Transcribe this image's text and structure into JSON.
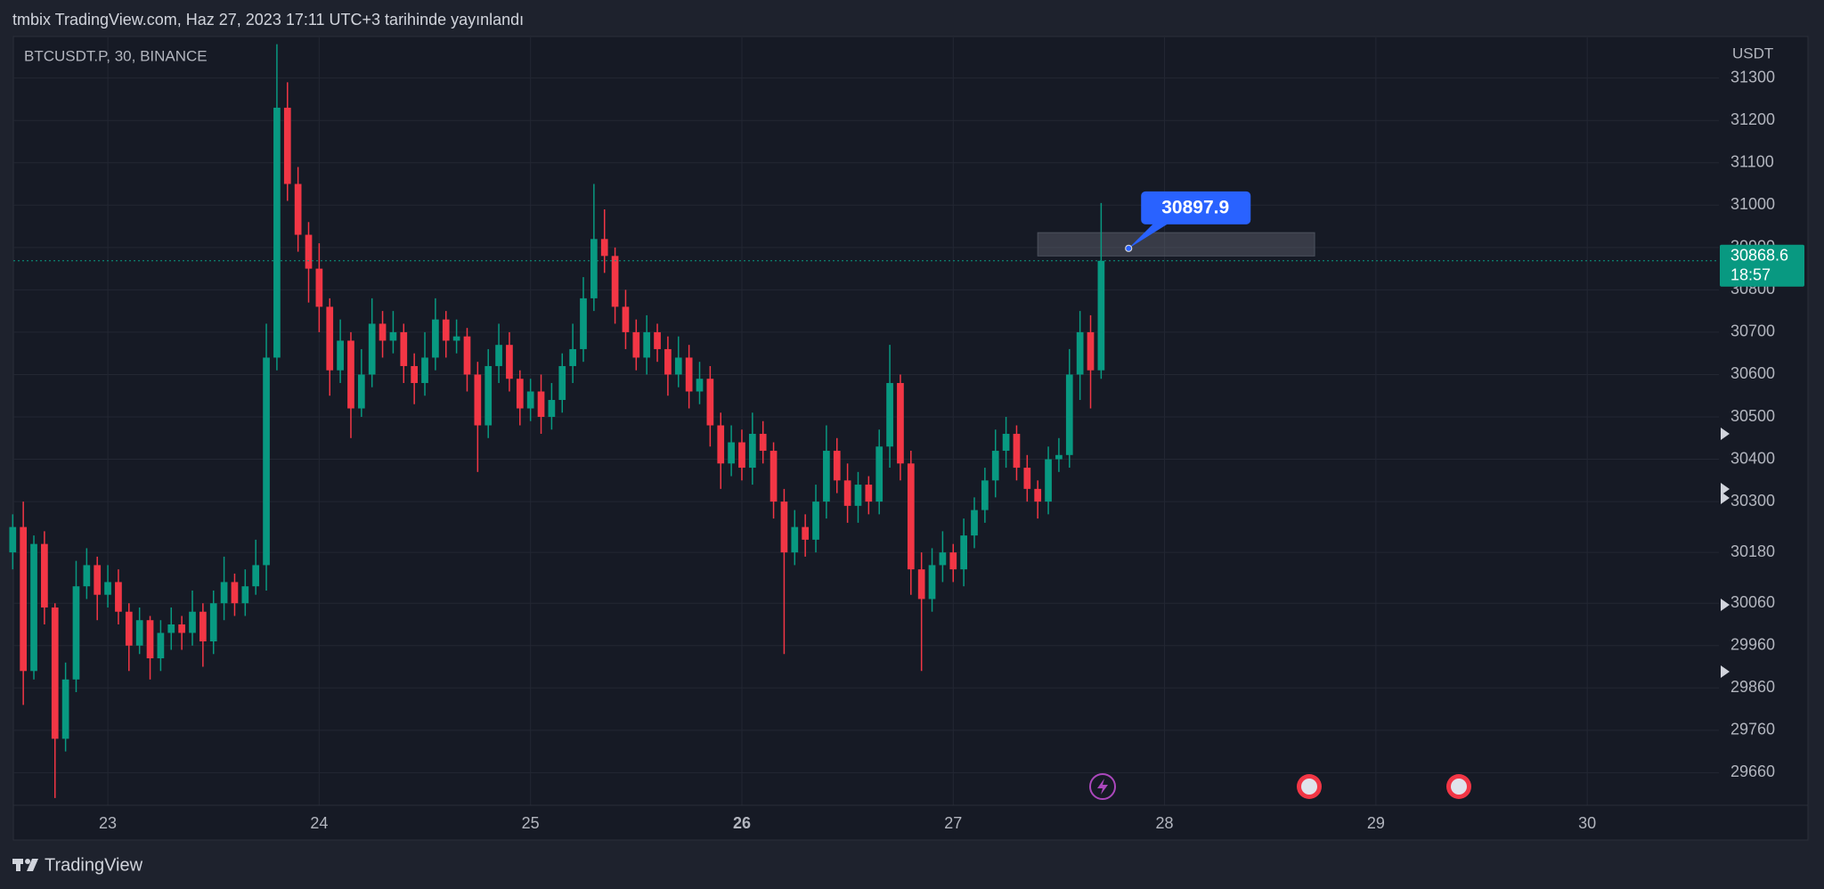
{
  "header": {
    "publisher": "tmbix TradingView.com, Haz 27, 2023 17:11 UTC+3 tarihinde yayınlandı"
  },
  "footer": {
    "brand": "TradingView"
  },
  "chart_data": {
    "type": "candlestick",
    "title": "BTCUSDT.P, 30, BINANCE",
    "y_unit": "USDT",
    "up_color": "#089981",
    "down_color": "#f23645",
    "grid": true,
    "xlim": [
      22.553,
      30.623
    ],
    "xticks": [
      23,
      24,
      25,
      26,
      27,
      28,
      29,
      30
    ],
    "ylim": [
      29583,
      31396
    ],
    "yticks": [
      31300,
      31200,
      31100,
      31000,
      30900,
      30800,
      30700,
      30600,
      30500,
      30400,
      30300,
      30180,
      30060,
      29960,
      29860,
      29760,
      29660
    ],
    "x": [
      22.55,
      22.6,
      22.65,
      22.7,
      22.75,
      22.8,
      22.85,
      22.9,
      22.95,
      23,
      23.05,
      23.1,
      23.15,
      23.2,
      23.25,
      23.3,
      23.35,
      23.4,
      23.45,
      23.5,
      23.55,
      23.6,
      23.65,
      23.7,
      23.75,
      23.8,
      23.85,
      23.9,
      23.95,
      24,
      24.05,
      24.1,
      24.15,
      24.2,
      24.25,
      24.3,
      24.35,
      24.4,
      24.45,
      24.5,
      24.55,
      24.6,
      24.65,
      24.7,
      24.75,
      24.8,
      24.85,
      24.9,
      24.95,
      25,
      25.05,
      25.1,
      25.15,
      25.2,
      25.25,
      25.3,
      25.35,
      25.4,
      25.45,
      25.5,
      25.55,
      25.6,
      25.65,
      25.7,
      25.75,
      25.8,
      25.85,
      25.9,
      25.95,
      26,
      26.05,
      26.1,
      26.15,
      26.2,
      26.25,
      26.3,
      26.35,
      26.4,
      26.45,
      26.5,
      26.55,
      26.6,
      26.65,
      26.7,
      26.75,
      26.8,
      26.85,
      26.9,
      26.95,
      27,
      27.05,
      27.1,
      27.15,
      27.2,
      27.25,
      27.3,
      27.35,
      27.4,
      27.45,
      27.5,
      27.55,
      27.6,
      27.65,
      27.7
    ],
    "open": [
      30180,
      30240,
      29900,
      30200,
      30050,
      29740,
      29880,
      30100,
      30150,
      30080,
      30110,
      30040,
      29960,
      30020,
      29930,
      29990,
      30010,
      29990,
      30040,
      29970,
      30060,
      30110,
      30060,
      30100,
      30150,
      30640,
      31230,
      31050,
      30930,
      30850,
      30760,
      30610,
      30680,
      30520,
      30600,
      30720,
      30680,
      30700,
      30620,
      30580,
      30640,
      30730,
      30680,
      30690,
      30600,
      30480,
      30620,
      30670,
      30590,
      30520,
      30560,
      30500,
      30540,
      30620,
      30660,
      30780,
      30920,
      30880,
      30760,
      30700,
      30640,
      30700,
      30660,
      30600,
      30640,
      30560,
      30590,
      30480,
      30390,
      30440,
      30380,
      30460,
      30420,
      30300,
      30180,
      30240,
      30210,
      30300,
      30420,
      30350,
      30290,
      30340,
      30300,
      30430,
      30580,
      30390,
      30140,
      30070,
      30150,
      30180,
      30140,
      30220,
      30280,
      30350,
      30420,
      30460,
      30380,
      30330,
      30300,
      30400,
      30410,
      30600,
      30700,
      30610
    ],
    "high": [
      30270,
      30300,
      30220,
      30230,
      30060,
      29920,
      30160,
      30190,
      30170,
      30150,
      30140,
      30060,
      30050,
      30030,
      30020,
      30050,
      30030,
      30090,
      30060,
      30090,
      30170,
      30130,
      30140,
      30210,
      30720,
      31380,
      31290,
      31090,
      30960,
      30910,
      30780,
      30730,
      30700,
      30660,
      30780,
      30750,
      30750,
      30720,
      30650,
      30700,
      30780,
      30750,
      30730,
      30710,
      30630,
      30660,
      30720,
      30700,
      30610,
      30590,
      30600,
      30580,
      30650,
      30720,
      30830,
      31050,
      30990,
      30900,
      30800,
      30730,
      30740,
      30720,
      30690,
      30690,
      30670,
      30630,
      30620,
      30510,
      30480,
      30470,
      30510,
      30490,
      30440,
      30330,
      30280,
      30270,
      30340,
      30480,
      30450,
      30390,
      30370,
      30360,
      30470,
      30670,
      30600,
      30420,
      30180,
      30190,
      30230,
      30200,
      30260,
      30310,
      30380,
      30470,
      30500,
      30480,
      30410,
      30350,
      30430,
      30450,
      30660,
      30750,
      30740,
      31005
    ],
    "low": [
      30140,
      29820,
      29880,
      30010,
      29600,
      29710,
      29850,
      30070,
      30020,
      30050,
      30010,
      29900,
      29940,
      29880,
      29900,
      29950,
      29950,
      29960,
      29910,
      29940,
      30020,
      30030,
      30030,
      30080,
      30090,
      30610,
      31010,
      30890,
      30770,
      30700,
      30550,
      30580,
      30450,
      30500,
      30570,
      30640,
      30650,
      30580,
      30530,
      30550,
      30610,
      30640,
      30650,
      30560,
      30370,
      30450,
      30580,
      30560,
      30480,
      30490,
      30460,
      30470,
      30510,
      30580,
      30630,
      30750,
      30840,
      30720,
      30660,
      30610,
      30600,
      30630,
      30550,
      30570,
      30520,
      30530,
      30430,
      30330,
      30360,
      30350,
      30340,
      30390,
      30260,
      29940,
      30150,
      30170,
      30180,
      30260,
      30320,
      30250,
      30250,
      30270,
      30270,
      30380,
      30350,
      30080,
      29900,
      30040,
      30110,
      30110,
      30100,
      30190,
      30250,
      30310,
      30380,
      30350,
      30300,
      30260,
      30270,
      30370,
      30380,
      30540,
      30520,
      30590
    ],
    "close": [
      30240,
      29900,
      30200,
      30050,
      29740,
      29880,
      30100,
      30150,
      30080,
      30110,
      30040,
      29960,
      30020,
      29930,
      29990,
      30010,
      29990,
      30040,
      29970,
      30060,
      30110,
      30060,
      30100,
      30150,
      30640,
      31230,
      31050,
      30930,
      30850,
      30760,
      30610,
      30680,
      30520,
      30600,
      30720,
      30680,
      30700,
      30620,
      30580,
      30640,
      30730,
      30680,
      30690,
      30600,
      30480,
      30620,
      30670,
      30590,
      30520,
      30560,
      30500,
      30540,
      30620,
      30660,
      30780,
      30920,
      30880,
      30760,
      30700,
      30640,
      30700,
      30660,
      30600,
      30640,
      30560,
      30590,
      30480,
      30390,
      30440,
      30380,
      30460,
      30420,
      30300,
      30180,
      30240,
      30210,
      30300,
      30420,
      30350,
      30290,
      30340,
      30300,
      30430,
      30580,
      30390,
      30140,
      30070,
      30150,
      30180,
      30140,
      30220,
      30280,
      30350,
      30420,
      30460,
      30380,
      30330,
      30300,
      30400,
      30410,
      30600,
      30700,
      30610,
      30868.6
    ],
    "countdown": "18:57",
    "callout": {
      "x": 27.83,
      "value": 30897.9
    },
    "zone": {
      "x": [
        27.4,
        28.71
      ],
      "y": [
        30880,
        30935
      ]
    }
  }
}
